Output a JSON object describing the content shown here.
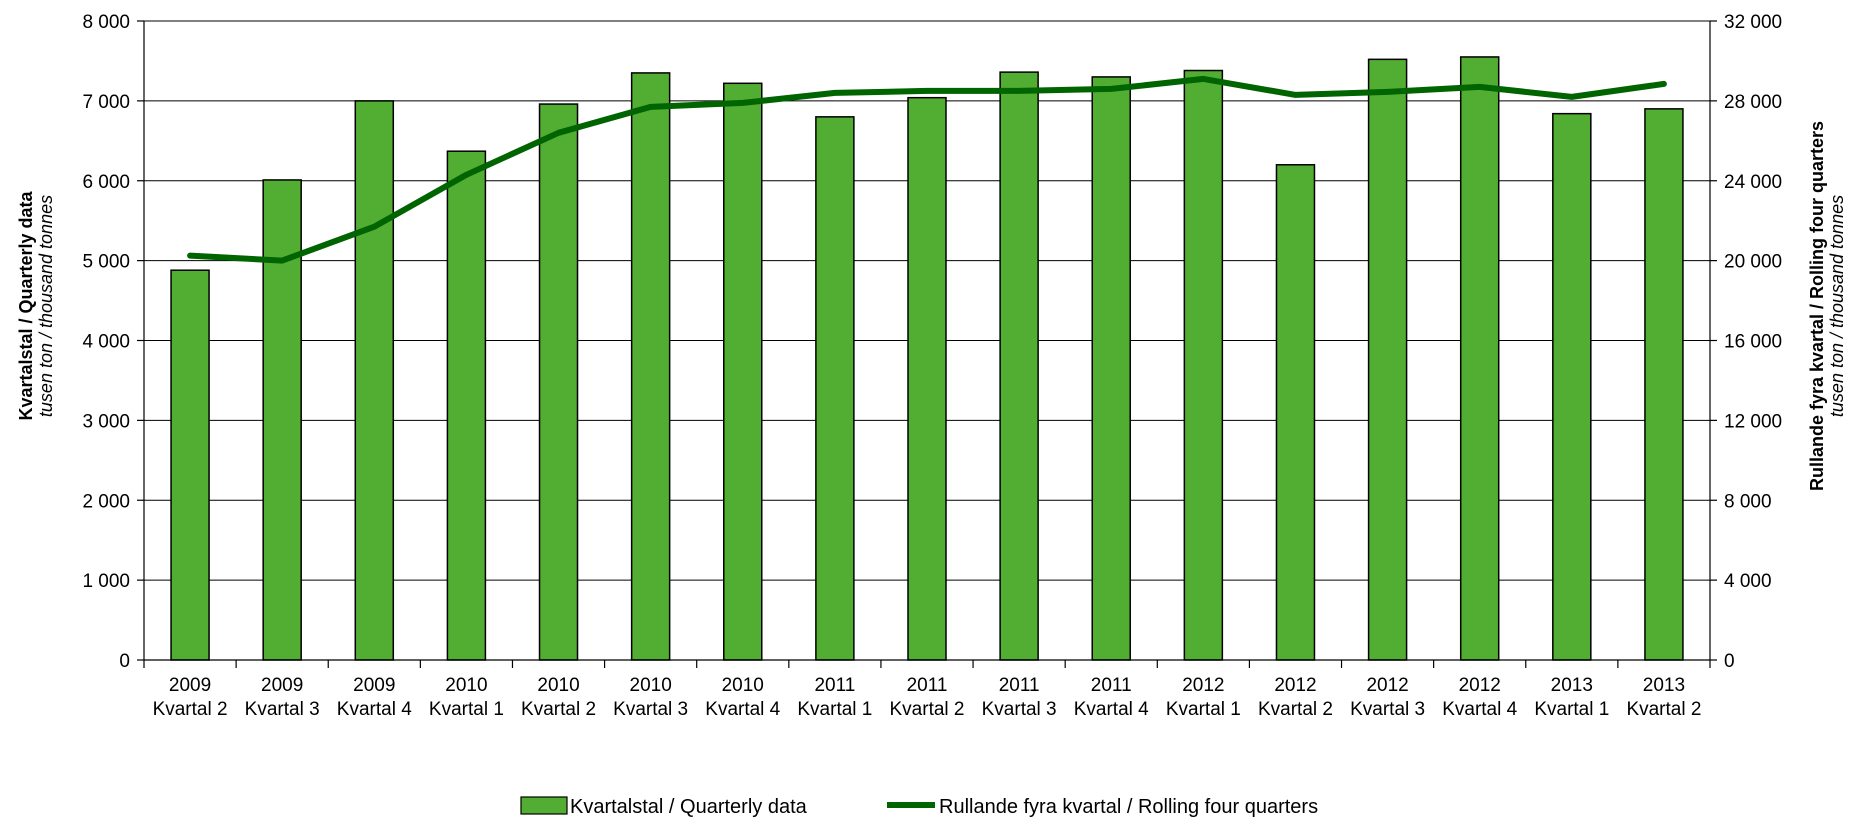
{
  "chart_data": {
    "type": "bar",
    "categories": [
      [
        "2009",
        "Kvartal 2"
      ],
      [
        "2009",
        "Kvartal 3"
      ],
      [
        "2009",
        "Kvartal 4"
      ],
      [
        "2010",
        "Kvartal 1"
      ],
      [
        "2010",
        "Kvartal 2"
      ],
      [
        "2010",
        "Kvartal 3"
      ],
      [
        "2010",
        "Kvartal 4"
      ],
      [
        "2011",
        "Kvartal 1"
      ],
      [
        "2011",
        "Kvartal 2"
      ],
      [
        "2011",
        "Kvartal 3"
      ],
      [
        "2011",
        "Kvartal 4"
      ],
      [
        "2012",
        "Kvartal 1"
      ],
      [
        "2012",
        "Kvartal 2"
      ],
      [
        "2012",
        "Kvartal 3"
      ],
      [
        "2012",
        "Kvartal 4"
      ],
      [
        "2013",
        "Kvartal 1"
      ],
      [
        "2013",
        "Kvartal 2"
      ]
    ],
    "series": [
      {
        "name": "Kvartalstal / Quarterly data",
        "type": "bar",
        "axis": "left",
        "color": "#52ae32",
        "values": [
          4880,
          6010,
          7000,
          6370,
          6960,
          7350,
          7220,
          6800,
          7040,
          7360,
          7300,
          7380,
          6200,
          7520,
          7550,
          6840,
          6900
        ]
      },
      {
        "name": "Rullande fyra kvartal / Rolling four quarters",
        "type": "line",
        "axis": "right",
        "color": "#006400",
        "values": [
          20250,
          20000,
          21700,
          24300,
          26400,
          27700,
          27900,
          28400,
          28500,
          28500,
          28600,
          29100,
          28300,
          28450,
          28700,
          28200,
          28850
        ]
      }
    ],
    "y_left": {
      "label_bold": "Kvartalstal  /  Quarterly data",
      "label_italic": "tusen ton  / thousand tonnes",
      "range": [
        0,
        8000
      ],
      "ticks": [
        0,
        1000,
        2000,
        3000,
        4000,
        5000,
        6000,
        7000,
        8000
      ],
      "tick_labels": [
        "0",
        "1 000",
        "2 000",
        "3 000",
        "4 000",
        "5 000",
        "6 000",
        "7 000",
        "8 000"
      ]
    },
    "y_right": {
      "label_bold": "Rullande fyra kvartal  /  Rolling four quarters",
      "label_italic": "tusen ton  / thousand tonnes",
      "range": [
        0,
        32000
      ],
      "ticks": [
        0,
        4000,
        8000,
        12000,
        16000,
        20000,
        24000,
        28000,
        32000
      ],
      "tick_labels": [
        "0",
        "4 000",
        "8 000",
        "12 000",
        "16 000",
        "20 000",
        "24 000",
        "28 000",
        "32 000"
      ]
    },
    "grid": true,
    "legend": {
      "position": "bottom"
    }
  }
}
